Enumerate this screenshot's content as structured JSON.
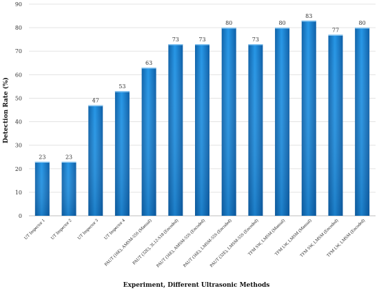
{
  "chart_data": {
    "type": "bar",
    "title": "",
    "xlabel": "Experiment, Different Ultrasonic Methods",
    "ylabel": "Detection Rate (%)",
    "ylim": [
      0,
      90
    ],
    "yticks": [
      0,
      10,
      20,
      30,
      40,
      50,
      60,
      70,
      80,
      90
    ],
    "grid": true,
    "legend": "none",
    "bar_color": "#1b87d6",
    "categories": [
      "UT Inspector 1",
      "UT Inspector 2",
      "UT Inspector 3",
      "UT Inspector 4",
      "PAUT (16E), AMSM-55S (Manual)",
      "PAUT (32E), 3L12-S18 (Encoded)",
      "PAUT (16E), AMSM-55S (Encoded)",
      "PAUT (16E), LMSM-55S (Encoded)",
      "PAUT (32E), LMSM-55S (Encoded)",
      "TFM SW, LMSM (Manual)",
      "TFM LW, LMSM (Manual)",
      "TFM SW, LMSM (Encoded)",
      "TFM LW, LMSM (Encoded)"
    ],
    "values": [
      23,
      23,
      47,
      53,
      63,
      73,
      73,
      80,
      73,
      80,
      83,
      77,
      80
    ],
    "data_labels": [
      "23",
      "23",
      "47",
      "53",
      "63",
      "73",
      "73",
      "80",
      "73",
      "80",
      "83",
      "77",
      "80"
    ]
  }
}
